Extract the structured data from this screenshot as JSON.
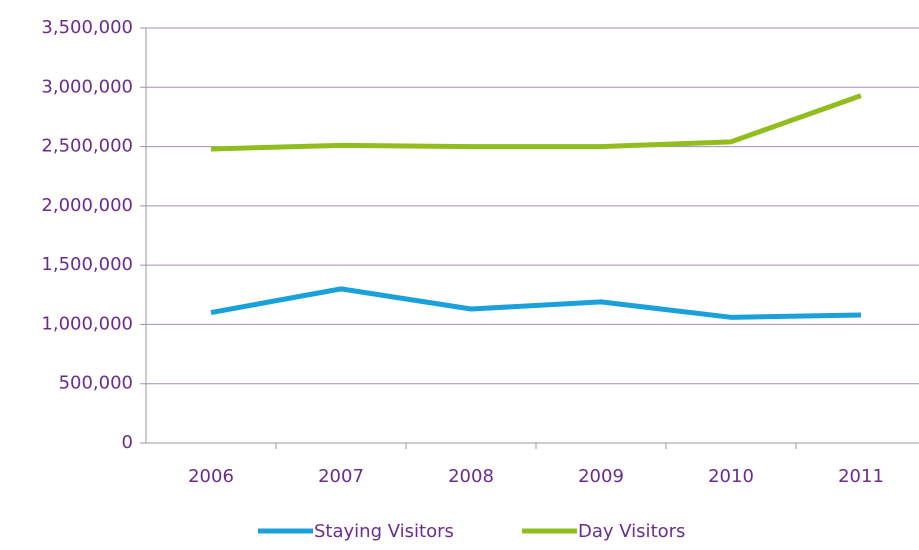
{
  "chart_data": {
    "type": "line",
    "categories": [
      "2006",
      "2007",
      "2008",
      "2009",
      "2010",
      "2011"
    ],
    "series": [
      {
        "name": "Staying Visitors",
        "color": "#1ba1d9",
        "values": [
          1100000,
          1300000,
          1130000,
          1190000,
          1060000,
          1080000
        ]
      },
      {
        "name": "Day Visitors",
        "color": "#92bd1f",
        "values": [
          2480000,
          2510000,
          2500000,
          2500000,
          2540000,
          2930000
        ]
      }
    ],
    "ylim": [
      0,
      3500000
    ],
    "yticks": [
      0,
      {
        "value": 500000,
        "label": "500,000"
      },
      {
        "value": 1000000,
        "label": "1,000,000"
      },
      {
        "value": 1500000,
        "label": "1,500,000"
      },
      {
        "value": 2000000,
        "label": "2,000,000"
      },
      {
        "value": 2500000,
        "label": "2,500,000"
      },
      {
        "value": 3000000,
        "label": "3,000,000"
      },
      {
        "value": 3500000,
        "label": "3,500,000"
      }
    ],
    "grid": true,
    "legend": "bottom"
  }
}
